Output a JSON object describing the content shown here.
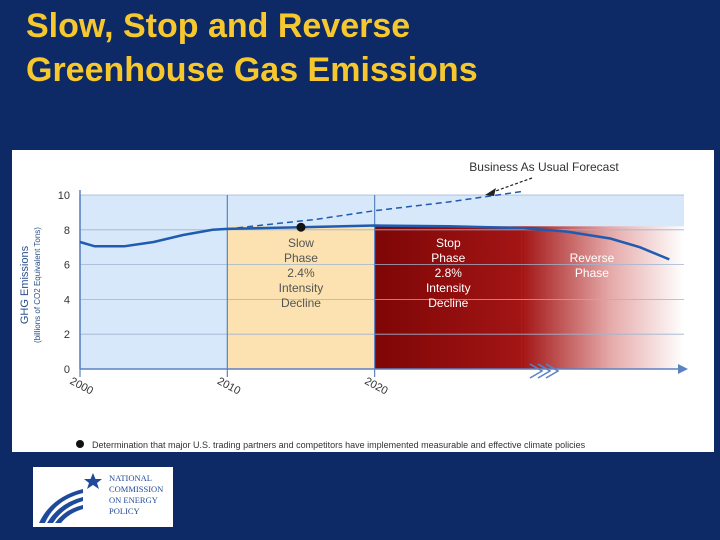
{
  "slide": {
    "title_line1": "Slow, Stop and Reverse",
    "title_line2": "Greenhouse Gas Emissions"
  },
  "colors": {
    "background": "#0d2a66",
    "title": "#f7c82e",
    "plot_area": "#d6e8fa",
    "slow_phase": "#fbe2b0",
    "stop_phase": "#8c0a0a",
    "emissions_line": "#1f5bb0"
  },
  "chart_data": {
    "type": "line",
    "ylabel_line1": "GHG Emissions",
    "ylabel_line2": "(billions of CO2 Equivalent Tons)",
    "yticks": [
      0,
      2,
      4,
      6,
      8,
      10
    ],
    "xticks": [
      "2000",
      "2010",
      "2020"
    ],
    "ylim": [
      0,
      10
    ],
    "xlim": [
      2000,
      2041
    ],
    "grid": true,
    "series": [
      {
        "name": "Business As Usual Forecast",
        "style": "dashed",
        "x": [
          2010,
          2016,
          2020,
          2025,
          2030
        ],
        "y": [
          8.05,
          8.6,
          9.1,
          9.6,
          10.2
        ]
      },
      {
        "name": "",
        "style": "solid",
        "x": [
          2000,
          2001,
          2003,
          2005,
          2007,
          2009,
          2010,
          2015,
          2020,
          2025,
          2030,
          2033,
          2036,
          2038,
          2040
        ],
        "y": [
          7.3,
          7.05,
          7.05,
          7.3,
          7.7,
          8.0,
          8.05,
          8.15,
          8.25,
          8.2,
          8.1,
          7.9,
          7.5,
          7.0,
          6.3
        ]
      }
    ],
    "phases": [
      {
        "name": "slow",
        "x": [
          2010,
          2020
        ],
        "lines": [
          "Slow",
          "Phase",
          "2.4%",
          "Intensity",
          "Decline"
        ]
      },
      {
        "name": "stop",
        "x": [
          2020,
          2030
        ],
        "lines": [
          "Stop",
          "Phase",
          "2.8%",
          "Intensity",
          "Decline"
        ]
      },
      {
        "name": "reverse",
        "x": [
          2030,
          2041
        ],
        "lines": [
          "Reverse",
          "Phase"
        ]
      }
    ],
    "marker": {
      "x": 2015,
      "y": 8.15
    },
    "annotation": "Business As Usual Forecast",
    "footnote": "Determination that major U.S. trading partners and competitors have implemented measurable and effective climate policies"
  },
  "logo": {
    "line1": "NATIONAL",
    "line2": "COMMISSION",
    "line3": "ON ENERGY",
    "line4": "POLICY"
  }
}
